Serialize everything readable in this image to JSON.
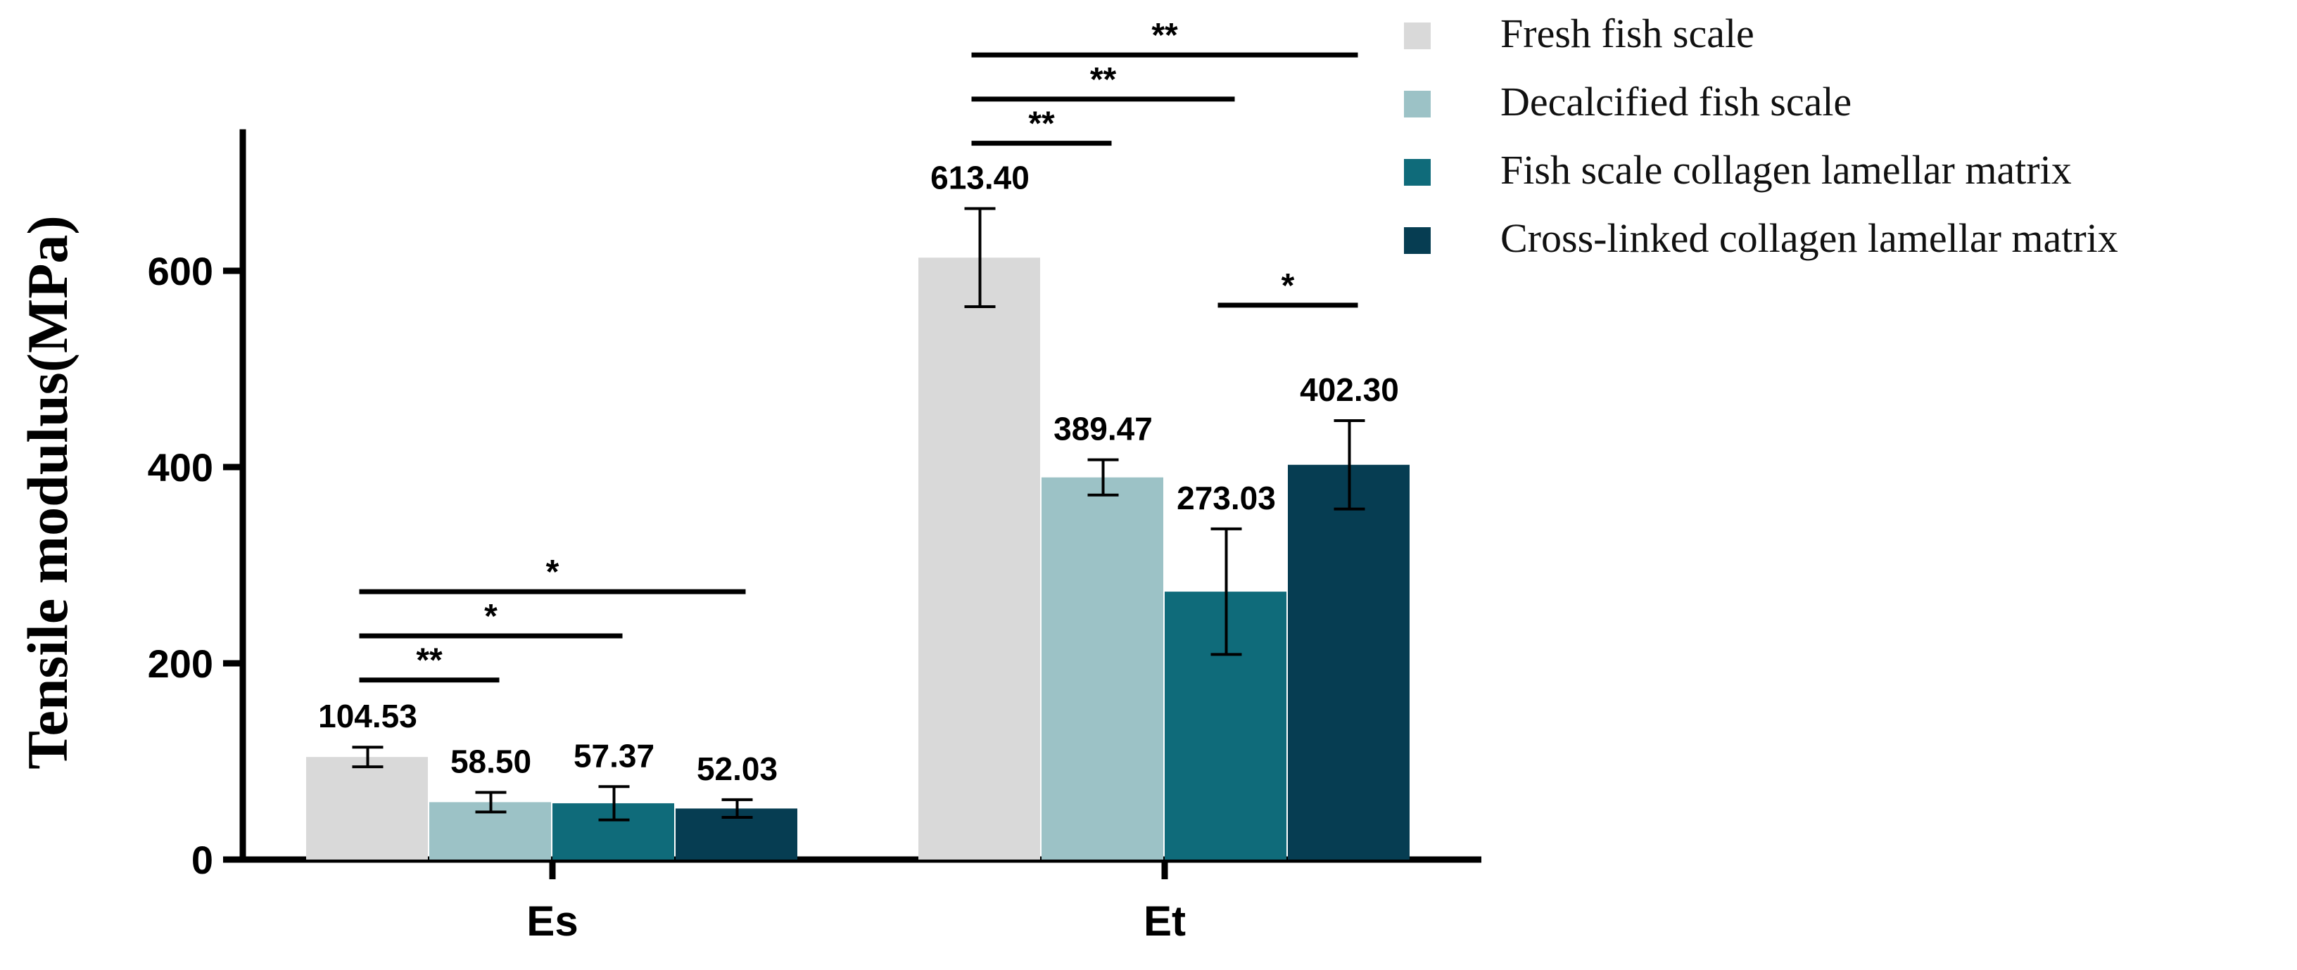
{
  "chart_data": {
    "type": "bar",
    "title": "",
    "xlabel": "",
    "ylabel": "Tensile modulus(MPa)",
    "ylim": [
      0,
      750
    ],
    "yticks": [
      0,
      200,
      400,
      600
    ],
    "categories": [
      "Es",
      "Et"
    ],
    "series": [
      {
        "name": "Fresh fish scale",
        "color": "#d9d9d9",
        "values": [
          104.53,
          613.4
        ],
        "errors": [
          10,
          50
        ],
        "labels": [
          "104.53",
          "613.40"
        ]
      },
      {
        "name": "Decalcified fish scale",
        "color": "#9cc2c6",
        "values": [
          58.5,
          389.47
        ],
        "errors": [
          10,
          18
        ],
        "labels": [
          "58.50",
          "389.47"
        ]
      },
      {
        "name": "Fish scale collagen lamellar matrix",
        "color": "#0f6b7a",
        "values": [
          57.37,
          273.03
        ],
        "errors": [
          17,
          64
        ],
        "labels": [
          "57.37",
          "273.03"
        ]
      },
      {
        "name": "Cross-linked collagen lamellar matrix",
        "color": "#063d52",
        "values": [
          52.03,
          402.3
        ],
        "errors": [
          9,
          45
        ],
        "labels": [
          "52.03",
          "402.30"
        ]
      }
    ],
    "significance": [
      {
        "category": 0,
        "from": 0,
        "to": 1,
        "y": 183,
        "label": "**"
      },
      {
        "category": 0,
        "from": 0,
        "to": 2,
        "y": 228,
        "label": "*"
      },
      {
        "category": 0,
        "from": 0,
        "to": 3,
        "y": 273,
        "label": "*"
      },
      {
        "category": 1,
        "from": 0,
        "to": 1,
        "y": 730,
        "label": "**"
      },
      {
        "category": 1,
        "from": 0,
        "to": 2,
        "y": 775,
        "label": "**"
      },
      {
        "category": 1,
        "from": 0,
        "to": 3,
        "y": 820,
        "label": "**"
      },
      {
        "category": 1,
        "from": 2,
        "to": 3,
        "y": 565,
        "label": "*"
      }
    ],
    "legend_position": "top-right"
  }
}
